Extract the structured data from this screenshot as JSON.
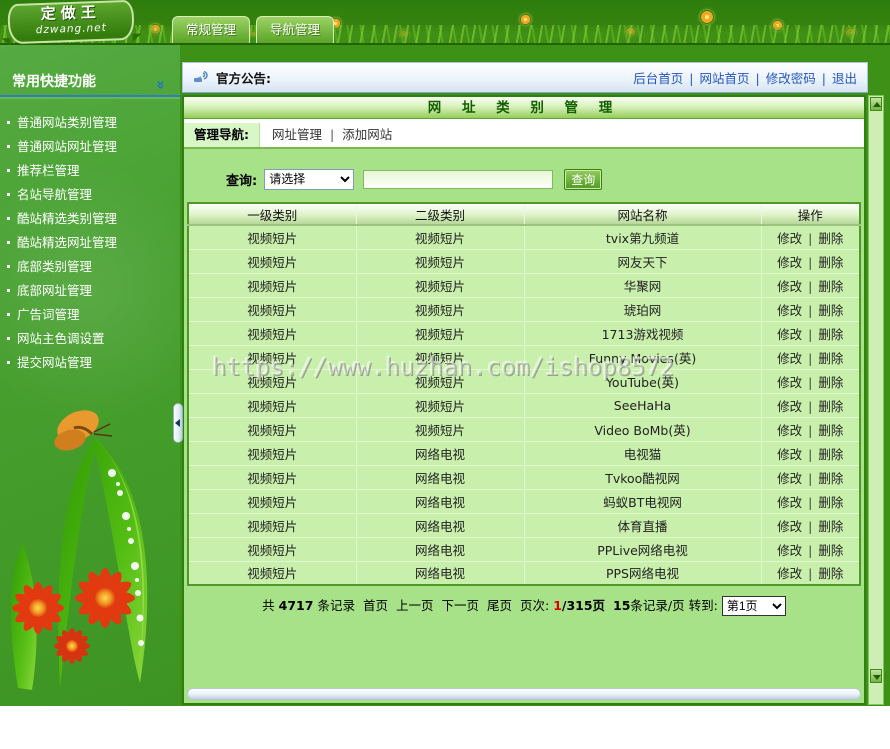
{
  "colors": {
    "accent_green": "#3D9117",
    "panel_green": "#A7E288",
    "link_blue": "#2455C3",
    "page_red": "#E00000"
  },
  "watermark": "https://www.huzhan.com/ishop8572",
  "banner": {
    "logo_title": "定做王",
    "logo_sub": "dzwang.net",
    "tabs": [
      {
        "label": "常规管理"
      },
      {
        "label": "导航管理"
      }
    ]
  },
  "sidebar": {
    "header": "常用快捷功能",
    "chevron": "»",
    "items": [
      "普通网站类别管理",
      "普通网站网址管理",
      "推荐栏管理",
      "名站导航管理",
      "酷站精选类别管理",
      "酷站精选网址管理",
      "底部类别管理",
      "底部网址管理",
      "广告词管理",
      "网站主色调设置",
      "提交网站管理"
    ]
  },
  "topbar": {
    "announcement_label": "官方公告:",
    "links": [
      "后台首页",
      "网站首页",
      "修改密码",
      "退出"
    ]
  },
  "main": {
    "title": "网 址 类 别 管 理",
    "nav_label": "管理导航:",
    "nav_links": [
      "网址管理",
      "添加网站"
    ],
    "query": {
      "label": "查询:",
      "select_value": "请选择",
      "input_value": "",
      "button_label": "查询"
    },
    "table": {
      "headers": [
        "一级类别",
        "二级类别",
        "网站名称",
        "操作"
      ],
      "op_edit": "修改",
      "op_delete": "删除",
      "rows": [
        {
          "cat1": "视频短片",
          "cat2": "视频短片",
          "site": "tvix第九频道"
        },
        {
          "cat1": "视频短片",
          "cat2": "视频短片",
          "site": "网友天下"
        },
        {
          "cat1": "视频短片",
          "cat2": "视频短片",
          "site": "华聚网"
        },
        {
          "cat1": "视频短片",
          "cat2": "视频短片",
          "site": "琥珀网"
        },
        {
          "cat1": "视频短片",
          "cat2": "视频短片",
          "site": "1713游戏视频"
        },
        {
          "cat1": "视频短片",
          "cat2": "视频短片",
          "site": "Funny Movies(英)"
        },
        {
          "cat1": "视频短片",
          "cat2": "视频短片",
          "site": "YouTube(英)"
        },
        {
          "cat1": "视频短片",
          "cat2": "视频短片",
          "site": "SeeHaHa"
        },
        {
          "cat1": "视频短片",
          "cat2": "视频短片",
          "site": "Video BoMb(英)"
        },
        {
          "cat1": "视频短片",
          "cat2": "网络电视",
          "site": "电视猫"
        },
        {
          "cat1": "视频短片",
          "cat2": "网络电视",
          "site": "Tvkoo酷视网"
        },
        {
          "cat1": "视频短片",
          "cat2": "网络电视",
          "site": "蚂蚁BT电视网"
        },
        {
          "cat1": "视频短片",
          "cat2": "网络电视",
          "site": "体育直播"
        },
        {
          "cat1": "视频短片",
          "cat2": "网络电视",
          "site": "PPLive网络电视"
        },
        {
          "cat1": "视频短片",
          "cat2": "网络电视",
          "site": "PPS网络电视"
        }
      ]
    },
    "pagination": {
      "total_prefix": "共",
      "total": "4717",
      "total_suffix": "条记录",
      "nav_links": [
        "首页",
        "上一页",
        "下一页",
        "尾页"
      ],
      "page_label": "页次:",
      "page_current": "1",
      "page_rest": "/315页",
      "per_page_num": "15",
      "per_page_suffix": "条记录/页",
      "goto_label": "转到:",
      "goto_value": "第1页"
    }
  }
}
